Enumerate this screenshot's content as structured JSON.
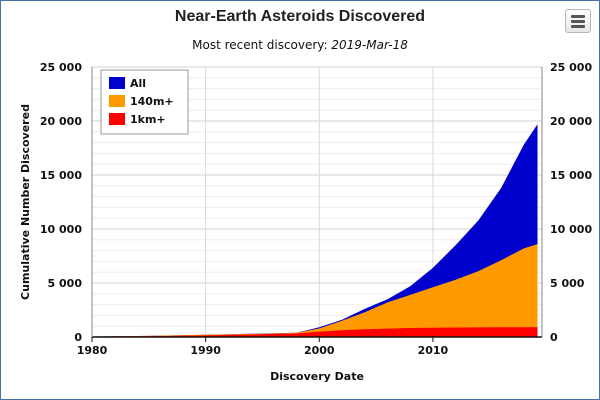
{
  "header": {
    "title": "Near-Earth Asteroids Discovered",
    "subtitle_prefix": "Most recent discovery: ",
    "subtitle_date": "2019-Mar-18"
  },
  "menu": {
    "icon": "hamburger-menu-icon"
  },
  "chart_data": {
    "type": "area",
    "title": "Near-Earth Asteroids Discovered",
    "subtitle": "Most recent discovery: 2019-Mar-18",
    "xlabel": "Discovery Date",
    "ylabel": "Cumulative Number Discovered",
    "xlim": [
      1980,
      2019.6
    ],
    "ylim": [
      0,
      25000
    ],
    "x_ticks": [
      1980,
      1990,
      2000,
      2010
    ],
    "y_ticks": [
      0,
      5000,
      10000,
      15000,
      20000,
      25000
    ],
    "y_tick_labels": [
      "0",
      "5 000",
      "10 000",
      "15 000",
      "20 000",
      "25 000"
    ],
    "dual_y_axis": true,
    "grid": true,
    "legend_position": "top-left",
    "x": [
      1980,
      1985,
      1990,
      1995,
      1998,
      2000,
      2002,
      2004,
      2006,
      2008,
      2010,
      2012,
      2014,
      2016,
      2018,
      2019.2
    ],
    "series": [
      {
        "name": "All",
        "color": "#0000cc",
        "values": [
          50,
          100,
          200,
          320,
          400,
          900,
          1600,
          2600,
          3500,
          4700,
          6400,
          8500,
          10800,
          13800,
          17800,
          19700
        ]
      },
      {
        "name": "140m+",
        "color": "#ff9900",
        "values": [
          50,
          100,
          200,
          310,
          380,
          800,
          1500,
          2300,
          3200,
          3900,
          4600,
          5300,
          6100,
          7100,
          8200,
          8600
        ]
      },
      {
        "name": "1km+",
        "color": "#ff0000",
        "values": [
          40,
          80,
          150,
          250,
          320,
          500,
          620,
          720,
          780,
          830,
          860,
          880,
          890,
          900,
          910,
          920
        ]
      }
    ]
  }
}
